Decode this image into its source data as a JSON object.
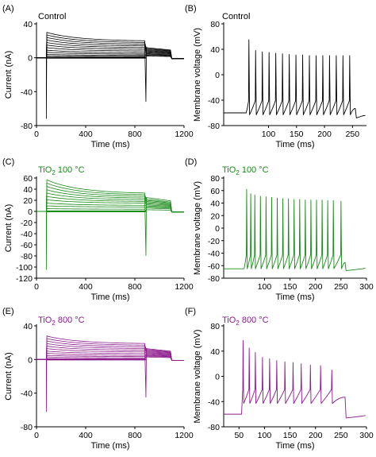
{
  "figure": {
    "panels": [
      {
        "id": "A",
        "label": "(A)",
        "title_main": "Control",
        "title_sub": "",
        "title_tail": "",
        "color": "#000000"
      },
      {
        "id": "B",
        "label": "(B)",
        "title_main": "Control",
        "title_sub": "",
        "title_tail": "",
        "color": "#000000"
      },
      {
        "id": "C",
        "label": "(C)",
        "title_main": "TiO",
        "title_sub": "2",
        "title_tail": " 100 °C",
        "color": "#1a8a1a"
      },
      {
        "id": "D",
        "label": "(D)",
        "title_main": "TiO",
        "title_sub": "2",
        "title_tail": " 100 °C",
        "color": "#1a8a1a"
      },
      {
        "id": "E",
        "label": "(E)",
        "title_main": "TiO",
        "title_sub": "2",
        "title_tail": " 800 °C",
        "color": "#8b1a8b"
      },
      {
        "id": "F",
        "label": "(F)",
        "title_main": "TiO",
        "title_sub": "2",
        "title_tail": " 800 °C",
        "color": "#8b1a8b"
      }
    ]
  },
  "chart_data": [
    {
      "id": "A",
      "type": "line",
      "title": "Control",
      "xlabel": "Time (ms)",
      "ylabel": "Current (nA)",
      "xlim": [
        0,
        1200
      ],
      "ylim": [
        -80,
        40
      ],
      "xticks": [
        0,
        400,
        800,
        1200
      ],
      "yticks": [
        -80,
        -40,
        0,
        40
      ],
      "series_color": "#000000",
      "step_start_ms": 80,
      "step_end_ms": 890,
      "tail_end_ms": 1100,
      "initial_peak_nA": [
        30,
        27,
        24,
        21,
        18,
        15,
        12,
        9,
        6.5,
        4,
        2
      ],
      "end_step_nA": [
        20,
        18,
        16,
        14,
        12,
        10,
        8,
        6,
        4.3,
        2.8,
        1.5
      ],
      "tail_nA": [
        12,
        11,
        10,
        9,
        8,
        7,
        6,
        5,
        4,
        3,
        2
      ],
      "onset_artifact_nA": -72,
      "offset_artifact_nA": -52
    },
    {
      "id": "B",
      "type": "line",
      "title": "Control",
      "xlabel": "Time (ms)",
      "ylabel": "Membrane voltage (mV)",
      "xlim": [
        20,
        275
      ],
      "ylim": [
        -80,
        80
      ],
      "xticks": [
        100,
        150,
        200,
        250
      ],
      "yticks": [
        -80,
        -40,
        0,
        40,
        80
      ],
      "series_color": "#000000",
      "rest_mV": -60,
      "trough_mV": -53,
      "end_rest_mV": -65,
      "stim_start_ms": 60,
      "stim_end_ms": 255,
      "spike_times_ms": [
        65,
        77,
        89,
        101,
        113,
        125,
        137,
        149,
        161,
        173,
        185,
        197,
        209,
        221,
        233,
        245
      ],
      "spike_peaks_mV": [
        55,
        38,
        36,
        35,
        34,
        33,
        32,
        31,
        31,
        30,
        30,
        30,
        30,
        30,
        30,
        30
      ]
    },
    {
      "id": "C",
      "type": "line",
      "title": "TiO2 100 °C",
      "xlabel": "Time (ms)",
      "ylabel": "Current (nA)",
      "xlim": [
        0,
        1200
      ],
      "ylim": [
        -120,
        60
      ],
      "xticks": [
        0,
        400,
        800,
        1200
      ],
      "yticks": [
        -120,
        -100,
        -80,
        -60,
        -40,
        -20,
        0,
        20,
        40,
        60
      ],
      "series_color": "#1a8a1a",
      "step_start_ms": 80,
      "step_end_ms": 890,
      "tail_end_ms": 1100,
      "initial_peak_nA": [
        57,
        51,
        45,
        39,
        33,
        27,
        21,
        15,
        10,
        5,
        1
      ],
      "end_step_nA": [
        33,
        30,
        27,
        24,
        21,
        18,
        15,
        11,
        8,
        4,
        1
      ],
      "tail_nA": [
        25,
        22,
        20,
        18,
        16,
        14,
        12,
        10,
        8,
        6,
        3
      ],
      "onset_artifact_nA": -105,
      "offset_artifact_nA": -80
    },
    {
      "id": "D",
      "type": "line",
      "title": "TiO2 100 °C",
      "xlabel": "Time (ms)",
      "ylabel": "Membrane voltage (mV)",
      "xlim": [
        20,
        300
      ],
      "ylim": [
        -80,
        80
      ],
      "xticks": [
        100,
        150,
        200,
        250,
        300
      ],
      "yticks": [
        -80,
        -60,
        -40,
        -20,
        0,
        20,
        40,
        60,
        80
      ],
      "series_color": "#1a8a1a",
      "rest_mV": -65,
      "trough_mV": -55,
      "end_rest_mV": -65,
      "stim_start_ms": 60,
      "stim_end_ms": 258,
      "spike_times_ms": [
        65,
        73,
        81,
        92,
        103,
        114,
        125,
        136,
        147,
        158,
        169,
        180,
        191,
        202,
        213,
        224,
        235,
        250
      ],
      "spike_peaks_mV": [
        62,
        55,
        53,
        51,
        50,
        49,
        48,
        47,
        47,
        46,
        46,
        45,
        45,
        45,
        45,
        44,
        44,
        43
      ]
    },
    {
      "id": "E",
      "type": "line",
      "title": "TiO2 800 °C",
      "xlabel": "Time (ms)",
      "ylabel": "Current (nA)",
      "xlim": [
        0,
        1200
      ],
      "ylim": [
        -80,
        40
      ],
      "xticks": [
        0,
        400,
        800,
        1200
      ],
      "yticks": [
        -80,
        -40,
        0,
        40
      ],
      "series_color": "#8b1a8b",
      "step_start_ms": 80,
      "step_end_ms": 890,
      "tail_end_ms": 1100,
      "initial_peak_nA": [
        28,
        25,
        22,
        19,
        16,
        13,
        10,
        7.5,
        5,
        3,
        1
      ],
      "end_step_nA": [
        19,
        17,
        15,
        13,
        11,
        9,
        7,
        5,
        3.5,
        2,
        0.8
      ],
      "tail_nA": [
        13,
        12,
        11,
        10,
        9,
        8,
        7,
        6,
        5,
        4,
        3
      ],
      "onset_artifact_nA": -62,
      "offset_artifact_nA": -45
    },
    {
      "id": "F",
      "type": "line",
      "title": "TiO2 800 °C",
      "xlabel": "Time (ms)",
      "ylabel": "Membrane voltage (mV)",
      "xlim": [
        20,
        300
      ],
      "ylim": [
        -80,
        80
      ],
      "xticks": [
        50,
        100,
        150,
        200,
        250,
        300
      ],
      "yticks": [
        -80,
        -40,
        0,
        40,
        80
      ],
      "series_color": "#8b1a8b",
      "rest_mV": -60,
      "trough_mV": -33,
      "end_rest_mV": -63,
      "stim_start_ms": 55,
      "stim_end_ms": 258,
      "spike_times_ms": [
        58,
        70,
        82,
        96,
        110,
        124,
        140,
        156,
        172,
        190,
        210,
        232
      ],
      "spike_peaks_mV": [
        57,
        45,
        38,
        30,
        28,
        25,
        23,
        22,
        20,
        18,
        17,
        10
      ]
    }
  ]
}
